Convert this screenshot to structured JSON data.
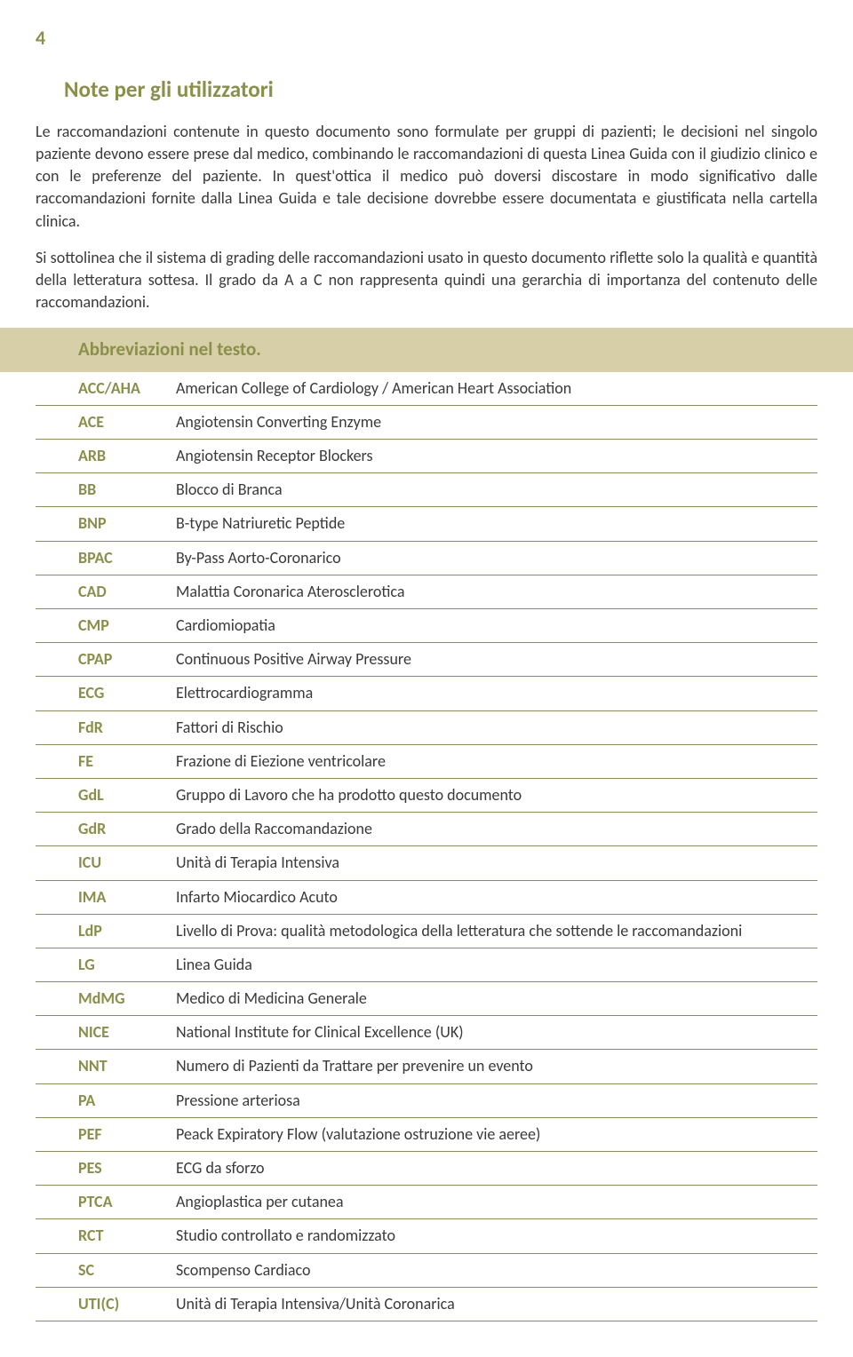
{
  "page_number": "4",
  "section_title": "Note per gli utilizzatori",
  "paragraphs": [
    "Le raccomandazioni contenute in questo documento sono formulate per gruppi di pazienti; le decisioni nel singolo paziente devono essere prese dal medico, combinando le raccomandazioni di questa Linea Guida con il giudizio clinico e con le preferenze del paziente. In quest'ottica il medico può doversi discostare in modo significativo dalle raccomandazioni fornite dalla Linea Guida e tale decisione dovrebbe essere documentata e giustificata nella cartella clinica.",
    "Si sottolinea che il sistema di grading delle raccomandazioni usato in questo documento riflette solo la qualità e quantità della letteratura sottesa. Il grado da A a C non rappresenta quindi una gerarchia di importanza del contenuto delle raccomandazioni."
  ],
  "abbrev_header": "Abbreviazioni nel testo.",
  "abbrevs": [
    {
      "term": "ACC/AHA",
      "def": "American College of Cardiology / American Heart Association"
    },
    {
      "term": "ACE",
      "def": "Angiotensin Converting Enzyme"
    },
    {
      "term": "ARB",
      "def": "Angiotensin Receptor Blockers"
    },
    {
      "term": "BB",
      "def": "Blocco di Branca"
    },
    {
      "term": "BNP",
      "def": "B-type Natriuretic Peptide"
    },
    {
      "term": "BPAC",
      "def": "By-Pass Aorto-Coronarico"
    },
    {
      "term": "CAD",
      "def": "Malattia Coronarica Aterosclerotica"
    },
    {
      "term": "CMP",
      "def": "Cardiomiopatia"
    },
    {
      "term": "CPAP",
      "def": "Continuous Positive Airway Pressure"
    },
    {
      "term": "ECG",
      "def": "Elettrocardiogramma"
    },
    {
      "term": "FdR",
      "def": "Fattori di Rischio"
    },
    {
      "term": "FE",
      "def": "Frazione di Eiezione ventricolare"
    },
    {
      "term": "GdL",
      "def": "Gruppo di Lavoro che ha prodotto questo documento"
    },
    {
      "term": "GdR",
      "def": "Grado della Raccomandazione"
    },
    {
      "term": "ICU",
      "def": "Unità di Terapia Intensiva"
    },
    {
      "term": "IMA",
      "def": "Infarto Miocardico Acuto"
    },
    {
      "term": "LdP",
      "def": "Livello di Prova: qualità metodologica della letteratura che sottende le raccomandazioni"
    },
    {
      "term": "LG",
      "def": "Linea Guida"
    },
    {
      "term": "MdMG",
      "def": "Medico di Medicina Generale"
    },
    {
      "term": "NICE",
      "def": "National Institute for Clinical Excellence (UK)"
    },
    {
      "term": "NNT",
      "def": "Numero di Pazienti da Trattare per prevenire un evento"
    },
    {
      "term": "PA",
      "def": "Pressione arteriosa"
    },
    {
      "term": "PEF",
      "def": "Peack Expiratory Flow (valutazione ostruzione vie aeree)"
    },
    {
      "term": "PES",
      "def": "ECG da sforzo"
    },
    {
      "term": "PTCA",
      "def": "Angioplastica per cutanea"
    },
    {
      "term": "RCT",
      "def": "Studio controllato e randomizzato"
    },
    {
      "term": "SC",
      "def": "Scompenso Cardiaco"
    },
    {
      "term": "UTI(C)",
      "def": "Unità di Terapia Intensiva/Unità Coronarica"
    }
  ],
  "colors": {
    "olive": "#8a8f4a",
    "beige": "#d7cfa8",
    "text": "#3a3a3a",
    "border": "#8a8d5a"
  }
}
